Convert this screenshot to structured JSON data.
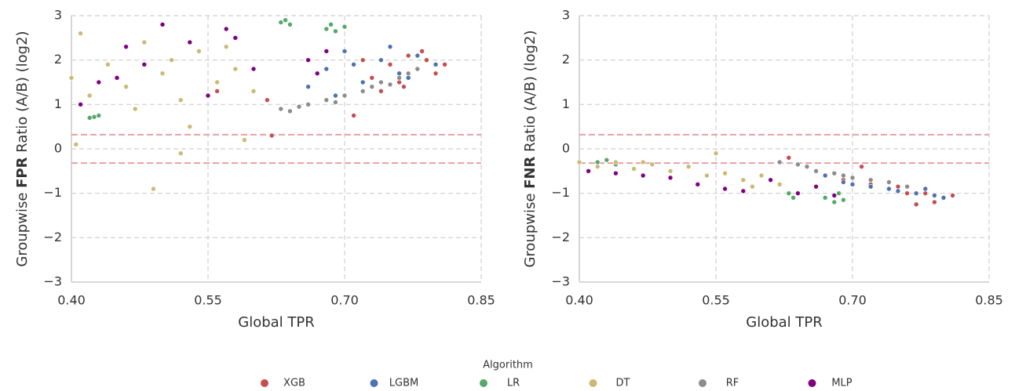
{
  "chart_data": [
    {
      "type": "scatter",
      "ylabel": [
        "Groupwise ",
        "FPR",
        " Ratio (A/B) (log2)"
      ],
      "xlabel": "Global TPR",
      "xlim": [
        0.4,
        0.85
      ],
      "xticks": [
        {
          "value": 0.4,
          "label": "0.40"
        },
        {
          "value": 0.55,
          "label": "0.55"
        },
        {
          "value": 0.7,
          "label": "0.70"
        },
        {
          "value": 0.85,
          "label": "0.85"
        }
      ],
      "ylim": [
        -3,
        3
      ],
      "yticks": [
        {
          "value": -3,
          "label": "−3"
        },
        {
          "value": -2,
          "label": "−2"
        },
        {
          "value": -1,
          "label": "−1"
        },
        0,
        1,
        2,
        3
      ],
      "grid": true,
      "hlines": [
        0.32,
        -0.32
      ],
      "hline_color": "#e8a0a4",
      "series": [
        {
          "name": "XGB",
          "color": "#c44e52",
          "x": [
            0.73,
            0.75,
            0.76,
            0.77,
            0.78,
            0.79,
            0.8,
            0.81,
            0.74,
            0.72,
            0.62,
            0.615,
            0.56,
            0.71,
            0.765,
            0.785
          ],
          "y": [
            1.6,
            1.9,
            1.5,
            2.1,
            1.8,
            2.0,
            1.7,
            1.9,
            1.3,
            2.0,
            0.3,
            1.1,
            1.3,
            0.75,
            1.4,
            2.2
          ]
        },
        {
          "name": "LGBM",
          "color": "#4c72b0",
          "x": [
            0.66,
            0.68,
            0.7,
            0.72,
            0.74,
            0.76,
            0.78,
            0.8,
            0.69,
            0.71,
            0.75,
            0.77
          ],
          "y": [
            1.4,
            1.8,
            2.2,
            1.5,
            2.0,
            1.7,
            2.1,
            1.9,
            1.2,
            1.9,
            2.3,
            1.6
          ]
        },
        {
          "name": "LR",
          "color": "#55a868",
          "x": [
            0.63,
            0.635,
            0.64,
            0.68,
            0.685,
            0.69,
            0.7,
            0.42,
            0.43,
            0.425
          ],
          "y": [
            2.85,
            2.9,
            2.8,
            2.7,
            2.8,
            2.65,
            2.75,
            0.7,
            0.75,
            0.72
          ]
        },
        {
          "name": "DT",
          "color": "#ccb974",
          "x": [
            0.4,
            0.41,
            0.42,
            0.44,
            0.46,
            0.48,
            0.5,
            0.52,
            0.54,
            0.56,
            0.58,
            0.6,
            0.47,
            0.51,
            0.53,
            0.57,
            0.49,
            0.405,
            0.52,
            0.59
          ],
          "y": [
            1.6,
            2.6,
            1.2,
            1.9,
            1.4,
            2.4,
            1.7,
            1.1,
            2.2,
            1.5,
            1.8,
            1.3,
            0.9,
            2.0,
            0.5,
            2.3,
            -0.9,
            0.1,
            -0.1,
            0.2
          ]
        },
        {
          "name": "RF",
          "color": "#8c8c8c",
          "x": [
            0.63,
            0.64,
            0.65,
            0.66,
            0.68,
            0.69,
            0.7,
            0.72,
            0.73,
            0.74,
            0.75,
            0.76,
            0.77,
            0.78
          ],
          "y": [
            0.9,
            0.85,
            0.95,
            1.0,
            1.1,
            1.05,
            1.2,
            1.3,
            1.4,
            1.5,
            1.45,
            1.6,
            1.7,
            1.8
          ]
        },
        {
          "name": "MLP",
          "color": "#800080",
          "x": [
            0.41,
            0.43,
            0.46,
            0.48,
            0.5,
            0.53,
            0.55,
            0.57,
            0.6,
            0.66,
            0.67,
            0.68,
            0.45,
            0.58
          ],
          "y": [
            1.0,
            1.5,
            2.3,
            1.9,
            2.8,
            2.4,
            1.2,
            2.7,
            1.8,
            2.0,
            1.7,
            2.2,
            1.6,
            2.5
          ]
        }
      ]
    },
    {
      "type": "scatter",
      "ylabel": [
        "Groupwise ",
        "FNR",
        " Ratio (A/B) (log2)"
      ],
      "xlabel": "Global TPR",
      "xlim": [
        0.4,
        0.85
      ],
      "xticks": [
        {
          "value": 0.4,
          "label": "0.40"
        },
        {
          "value": 0.55,
          "label": "0.55"
        },
        {
          "value": 0.7,
          "label": "0.70"
        },
        {
          "value": 0.85,
          "label": "0.85"
        }
      ],
      "ylim": [
        -3,
        3
      ],
      "yticks": [
        {
          "value": -3,
          "label": "−3"
        },
        {
          "value": -2,
          "label": "−2"
        },
        {
          "value": -1,
          "label": "−1"
        },
        0,
        1,
        2,
        3
      ],
      "grid": true,
      "hlines": [
        0.32,
        -0.32
      ],
      "hline_color": "#e8a0a4",
      "series": [
        {
          "name": "XGB",
          "color": "#c44e52",
          "x": [
            0.62,
            0.63,
            0.66,
            0.69,
            0.71,
            0.72,
            0.74,
            0.76,
            0.78,
            0.79,
            0.8,
            0.81,
            0.75,
            0.77
          ],
          "y": [
            -0.3,
            -0.2,
            -0.5,
            -0.7,
            -0.4,
            -0.8,
            -0.9,
            -1.0,
            -1.0,
            -1.2,
            -1.1,
            -1.05,
            -0.85,
            -1.25
          ]
        },
        {
          "name": "LGBM",
          "color": "#4c72b0",
          "x": [
            0.67,
            0.69,
            0.7,
            0.72,
            0.74,
            0.75,
            0.77,
            0.78,
            0.79,
            0.8
          ],
          "y": [
            -0.6,
            -0.75,
            -0.8,
            -0.85,
            -0.9,
            -0.95,
            -1.0,
            -0.9,
            -1.05,
            -1.1
          ]
        },
        {
          "name": "LR",
          "color": "#55a868",
          "x": [
            0.42,
            0.43,
            0.44,
            0.63,
            0.635,
            0.67,
            0.68,
            0.685,
            0.69
          ],
          "y": [
            -0.3,
            -0.25,
            -0.35,
            -1.0,
            -1.1,
            -1.1,
            -1.2,
            -1.0,
            -1.15
          ]
        },
        {
          "name": "DT",
          "color": "#ccb974",
          "x": [
            0.4,
            0.42,
            0.44,
            0.46,
            0.48,
            0.5,
            0.52,
            0.54,
            0.56,
            0.58,
            0.6,
            0.62,
            0.47,
            0.55,
            0.59
          ],
          "y": [
            -0.3,
            -0.4,
            -0.3,
            -0.45,
            -0.35,
            -0.5,
            -0.4,
            -0.6,
            -0.55,
            -0.7,
            -0.6,
            -0.8,
            -0.3,
            -0.1,
            -0.85
          ]
        },
        {
          "name": "RF",
          "color": "#8c8c8c",
          "x": [
            0.62,
            0.64,
            0.65,
            0.66,
            0.68,
            0.69,
            0.7,
            0.72,
            0.74,
            0.76
          ],
          "y": [
            -0.3,
            -0.35,
            -0.4,
            -0.5,
            -0.55,
            -0.6,
            -0.65,
            -0.7,
            -0.75,
            -0.85
          ]
        },
        {
          "name": "MLP",
          "color": "#800080",
          "x": [
            0.41,
            0.44,
            0.47,
            0.5,
            0.53,
            0.56,
            0.58,
            0.61,
            0.64,
            0.66,
            0.68
          ],
          "y": [
            -0.5,
            -0.55,
            -0.6,
            -0.65,
            -0.8,
            -0.9,
            -0.95,
            -0.7,
            -1.0,
            -0.85,
            -1.05
          ]
        }
      ]
    }
  ],
  "legend_title": "Algorithm"
}
